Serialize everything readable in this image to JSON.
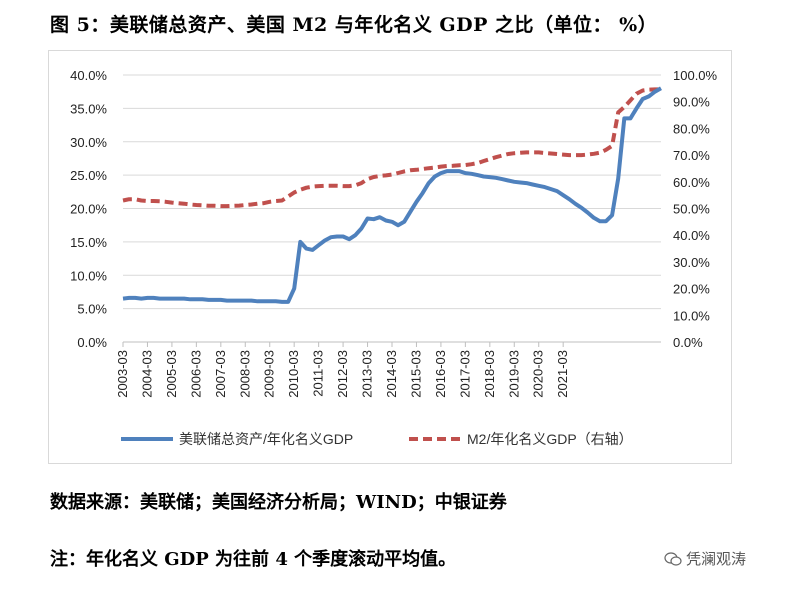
{
  "title": "图 5：美联储总资产、美国 M2 与年化名义 GDP 之比（单位：  %）",
  "source": "数据来源：美联储；美国经济分析局；WIND；中银证券",
  "note": "注：年化名义 GDP 为往前 4 个季度滚动平均值。",
  "watermark": "凭澜观涛",
  "colors": {
    "fed": "#4f81bd",
    "m2": "#c0504d"
  },
  "chart_data": {
    "type": "line",
    "x_ticks": [
      "2003-03",
      "2004-03",
      "2005-03",
      "2006-03",
      "2007-03",
      "2008-03",
      "2009-03",
      "2010-03",
      "2011-03",
      "2012-03",
      "2013-03",
      "2014-03",
      "2015-03",
      "2016-03",
      "2017-03",
      "2018-03",
      "2019-03",
      "2020-03",
      "2021-03"
    ],
    "y_left_ticks": [
      "0.0%",
      "5.0%",
      "10.0%",
      "15.0%",
      "20.0%",
      "25.0%",
      "30.0%",
      "35.0%",
      "40.0%"
    ],
    "y_right_ticks": [
      "0.0%",
      "10.0%",
      "20.0%",
      "30.0%",
      "40.0%",
      "50.0%",
      "60.0%",
      "70.0%",
      "80.0%",
      "90.0%",
      "100.0%"
    ],
    "y_left_lim": [
      0,
      40
    ],
    "y_right_lim": [
      0,
      100
    ],
    "x_start": "2003-03",
    "x_step": "quarter",
    "series": [
      {
        "name": "美联储总资产/年化名义GDP",
        "axis": "left",
        "style": "solid",
        "values": [
          6.5,
          6.6,
          6.6,
          6.5,
          6.6,
          6.6,
          6.5,
          6.5,
          6.5,
          6.5,
          6.5,
          6.4,
          6.4,
          6.4,
          6.3,
          6.3,
          6.3,
          6.2,
          6.2,
          6.2,
          6.2,
          6.2,
          6.1,
          6.1,
          6.1,
          6.1,
          6.0,
          6.0,
          8.0,
          15.0,
          14.0,
          13.8,
          14.5,
          15.2,
          15.7,
          15.8,
          15.8,
          15.4,
          16.0,
          17.0,
          18.5,
          18.4,
          18.7,
          18.2,
          18.0,
          17.5,
          18.0,
          19.5,
          21.0,
          22.3,
          23.8,
          24.8,
          25.3,
          25.6,
          25.6,
          25.6,
          25.3,
          25.2,
          25.0,
          24.8,
          24.7,
          24.6,
          24.4,
          24.2,
          24.0,
          23.9,
          23.8,
          23.6,
          23.4,
          23.2,
          22.9,
          22.6,
          22.0,
          21.4,
          20.7,
          20.1,
          19.4,
          18.6,
          18.1,
          18.1,
          19.0,
          24.5,
          33.5,
          33.5,
          35.0,
          36.4,
          36.8,
          37.5,
          38.0
        ]
      },
      {
        "name": "M2/年化名义GDP（右轴）",
        "axis": "right",
        "style": "dashed",
        "values": [
          53.0,
          53.5,
          53.5,
          53.0,
          52.8,
          52.8,
          52.7,
          52.5,
          52.2,
          52.0,
          51.8,
          51.5,
          51.3,
          51.2,
          51.0,
          51.0,
          50.9,
          50.9,
          51.0,
          51.1,
          51.3,
          51.5,
          51.8,
          52.0,
          52.5,
          52.8,
          53.0,
          54.5,
          56.0,
          57.0,
          57.8,
          58.2,
          58.4,
          58.5,
          58.5,
          58.5,
          58.4,
          58.4,
          58.7,
          59.5,
          61.0,
          61.8,
          62.2,
          62.4,
          62.7,
          63.3,
          63.9,
          64.3,
          64.5,
          64.8,
          65.1,
          65.3,
          65.7,
          65.9,
          66.0,
          66.2,
          66.3,
          66.6,
          67.0,
          67.8,
          68.5,
          69.2,
          69.8,
          70.4,
          70.7,
          70.9,
          71.0,
          71.0,
          71.0,
          70.8,
          70.6,
          70.4,
          70.2,
          70.0,
          70.0,
          70.0,
          70.2,
          70.5,
          70.9,
          72.0,
          73.5,
          86.0,
          88.0,
          90.5,
          93.0,
          94.2,
          94.5,
          94.6,
          94.6
        ]
      }
    ]
  }
}
